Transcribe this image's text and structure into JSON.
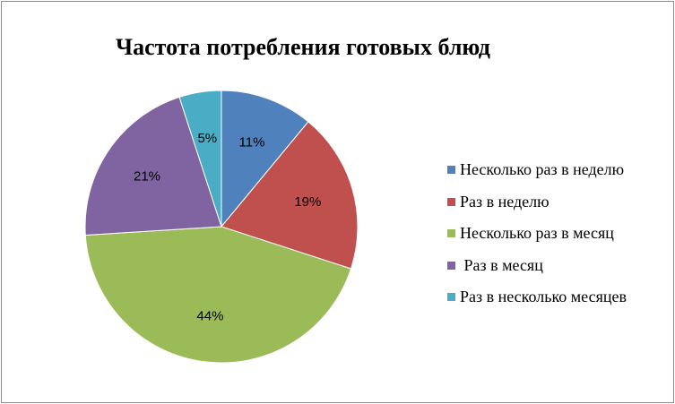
{
  "chart_data": {
    "type": "pie",
    "title": "Частота потребления готовых блюд",
    "slices": [
      {
        "label": "Несколько раз в неделю",
        "value": 11,
        "value_label": "11%",
        "color": "#4f81bd"
      },
      {
        "label": "Раз в неделю",
        "value": 19,
        "value_label": "19%",
        "color": "#c0504d"
      },
      {
        "label": "Несколько раз в месяц",
        "value": 44,
        "value_label": "44%",
        "color": "#9bbb59"
      },
      {
        "label": " Раз в месяц",
        "value": 21,
        "value_label": "21%",
        "color": "#8064a2"
      },
      {
        "label": "Раз в несколько месяцев",
        "value": 5,
        "value_label": "5%",
        "color": "#4bacc6"
      }
    ],
    "legend_position": "right"
  }
}
